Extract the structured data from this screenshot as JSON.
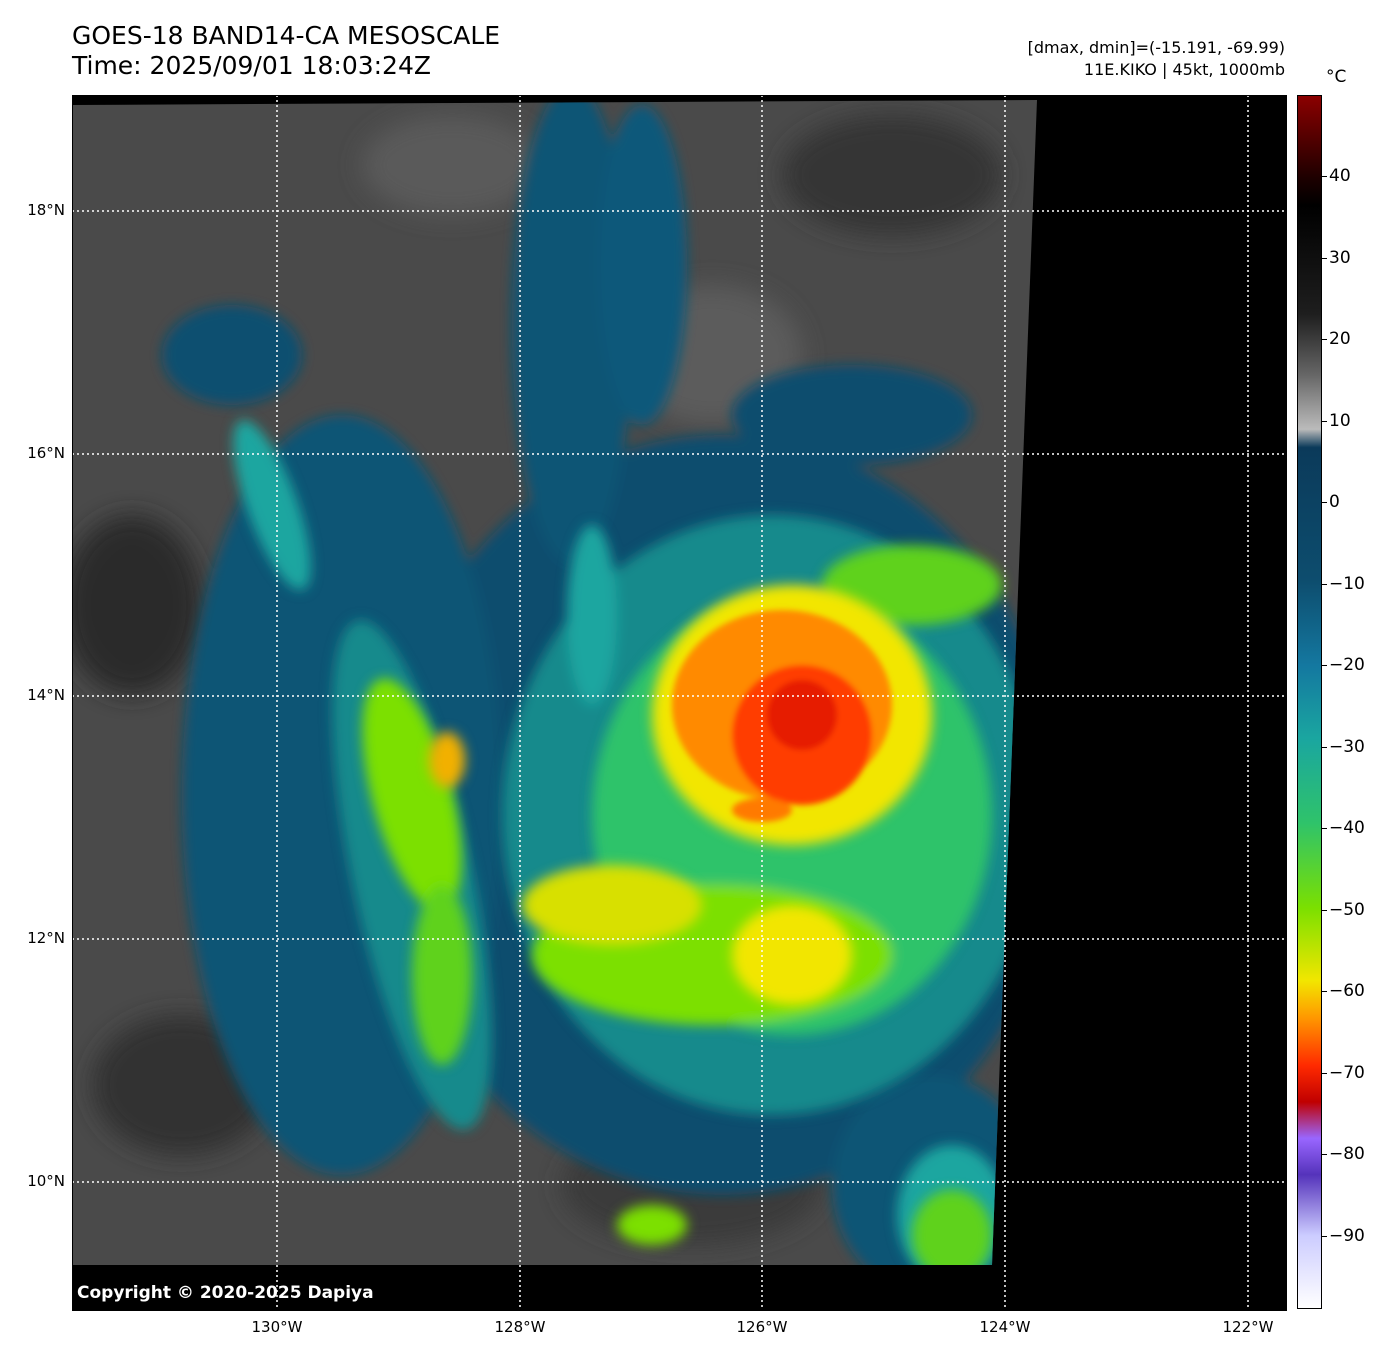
{
  "header": {
    "title_line1": "GOES-18 BAND14-CA MESOSCALE",
    "title_line2": "Time: 2025/09/01 18:03:24Z",
    "info_line1": "[dmax, dmin]=(-15.191, -69.99)",
    "info_line2": "11E.KIKO | 45kt, 1000mb"
  },
  "map": {
    "lat_labels": [
      "18°N",
      "16°N",
      "14°N",
      "12°N",
      "10°N"
    ],
    "lon_labels": [
      "130°W",
      "128°W",
      "126°W",
      "124°W",
      "122°W"
    ],
    "copyright": "Copyright © 2020-2025 Dapiya",
    "storm_name": "11E.KIKO",
    "colors": {
      "no_data": "#000000",
      "clear_sky": "#4a4a4a",
      "cloud_low": "#0d4d6e",
      "cloud_mid": "#1aa6a0",
      "cloud_cold": "#7be000",
      "cloud_colder": "#f2e600",
      "cloud_coldest": "#ff2a00",
      "gridline": "#ffffff"
    }
  },
  "colorbar": {
    "unit": "°C",
    "range": [
      -99,
      50
    ],
    "ticks": [
      "40",
      "30",
      "20",
      "10",
      "0",
      "−10",
      "−20",
      "−30",
      "−40",
      "−50",
      "−60",
      "−70",
      "−80",
      "−90"
    ]
  }
}
